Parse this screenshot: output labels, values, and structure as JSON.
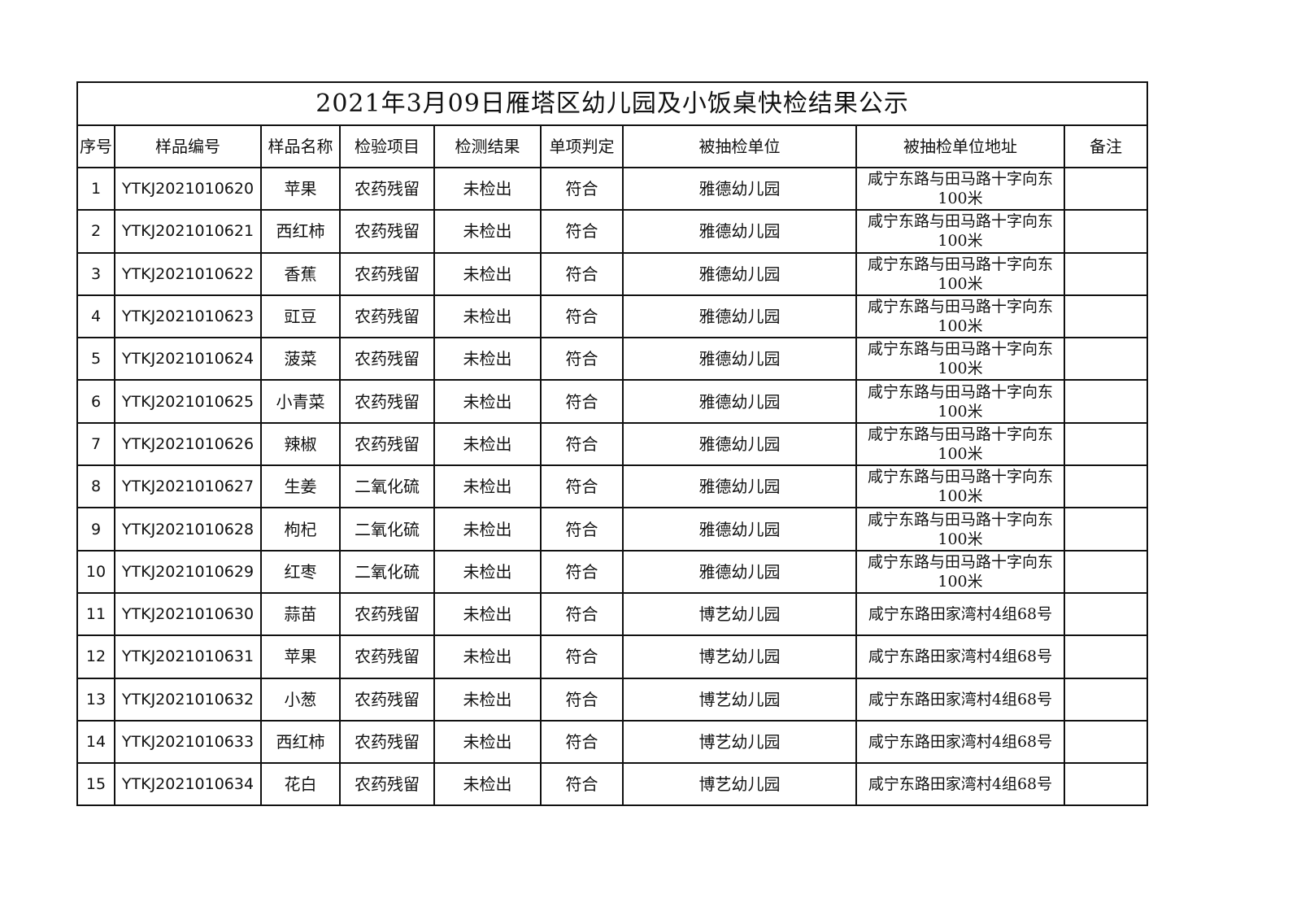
{
  "title": "2021年3月09日雁塔区幼儿园及小饭桌快检结果公示",
  "headers": [
    "序号",
    "样品编号",
    "样品名称",
    "检验项目",
    "检测结果",
    "单项判定",
    "被抽检单位",
    "被抽检单位地址",
    "备注"
  ],
  "rows": [
    [
      "1",
      "YTKJ2021010620",
      "苹果",
      "农药残留",
      "未检出",
      "符合",
      "雅德幼儿园",
      "咸宁东路与田马路十字向东100米",
      ""
    ],
    [
      "2",
      "YTKJ2021010621",
      "西红柿",
      "农药残留",
      "未检出",
      "符合",
      "雅德幼儿园",
      "咸宁东路与田马路十字向东100米",
      ""
    ],
    [
      "3",
      "YTKJ2021010622",
      "香蕉",
      "农药残留",
      "未检出",
      "符合",
      "雅德幼儿园",
      "咸宁东路与田马路十字向东100米",
      ""
    ],
    [
      "4",
      "YTKJ2021010623",
      "豇豆",
      "农药残留",
      "未检出",
      "符合",
      "雅德幼儿园",
      "咸宁东路与田马路十字向东100米",
      ""
    ],
    [
      "5",
      "YTKJ2021010624",
      "菠菜",
      "农药残留",
      "未检出",
      "符合",
      "雅德幼儿园",
      "咸宁东路与田马路十字向东100米",
      ""
    ],
    [
      "6",
      "YTKJ2021010625",
      "小青菜",
      "农药残留",
      "未检出",
      "符合",
      "雅德幼儿园",
      "咸宁东路与田马路十字向东100米",
      ""
    ],
    [
      "7",
      "YTKJ2021010626",
      "辣椒",
      "农药残留",
      "未检出",
      "符合",
      "雅德幼儿园",
      "咸宁东路与田马路十字向东100米",
      ""
    ],
    [
      "8",
      "YTKJ2021010627",
      "生姜",
      "二氧化硫",
      "未检出",
      "符合",
      "雅德幼儿园",
      "咸宁东路与田马路十字向东100米",
      ""
    ],
    [
      "9",
      "YTKJ2021010628",
      "枸杞",
      "二氧化硫",
      "未检出",
      "符合",
      "雅德幼儿园",
      "咸宁东路与田马路十字向东100米",
      ""
    ],
    [
      "10",
      "YTKJ2021010629",
      "红枣",
      "二氧化硫",
      "未检出",
      "符合",
      "雅德幼儿园",
      "咸宁东路与田马路十字向东100米",
      ""
    ],
    [
      "11",
      "YTKJ2021010630",
      "蒜苗",
      "农药残留",
      "未检出",
      "符合",
      "博艺幼儿园",
      "咸宁东路田家湾村4组68号",
      ""
    ],
    [
      "12",
      "YTKJ2021010631",
      "苹果",
      "农药残留",
      "未检出",
      "符合",
      "博艺幼儿园",
      "咸宁东路田家湾村4组68号",
      ""
    ],
    [
      "13",
      "YTKJ2021010632",
      "小葱",
      "农药残留",
      "未检出",
      "符合",
      "博艺幼儿园",
      "咸宁东路田家湾村4组68号",
      ""
    ],
    [
      "14",
      "YTKJ2021010633",
      "西红柿",
      "农药残留",
      "未检出",
      "符合",
      "博艺幼儿园",
      "咸宁东路田家湾村4组68号",
      ""
    ],
    [
      "15",
      "YTKJ2021010634",
      "花白",
      "农药残留",
      "未检出",
      "符合",
      "博艺幼儿园",
      "咸宁东路田家湾村4组68号",
      ""
    ]
  ]
}
